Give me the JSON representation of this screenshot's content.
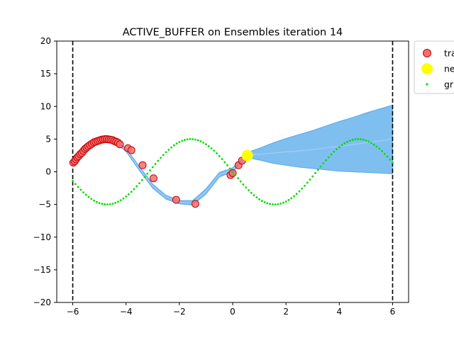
{
  "chart_data": {
    "type": "scatter",
    "title": "ACTIVE_BUFFER on Ensembles iteration 14",
    "xlabel": "",
    "ylabel": "",
    "xlim": [
      -6.6,
      6.6
    ],
    "ylim": [
      -20,
      20
    ],
    "xticks": [
      -6,
      -4,
      -2,
      0,
      2,
      4,
      6
    ],
    "xtick_labels": [
      "−6",
      "−4",
      "−2",
      "0",
      "2",
      "4",
      "6"
    ],
    "yticks": [
      -20,
      -15,
      -10,
      -5,
      0,
      5,
      10,
      15,
      20
    ],
    "ytick_labels": [
      "−20",
      "−15",
      "−10",
      "−5",
      "0",
      "5",
      "10",
      "15",
      "20"
    ],
    "vlines": [
      -6,
      6
    ],
    "legend_position": "upper-right-outside",
    "legend": [
      {
        "label": "tra",
        "marker": "circle",
        "color": "#f07070"
      },
      {
        "label": "ne",
        "marker": "circle",
        "color": "#ffff00"
      },
      {
        "label": "gr",
        "marker": "dot",
        "color": "#00dd00"
      }
    ],
    "colors": {
      "train": "#f07070",
      "train_edge": "#cc0000",
      "new": "#ffff00",
      "ground_truth": "#00dd00",
      "band": "#7fbfef",
      "band_edge": "#5aa8e6",
      "mean": "#9fcff5",
      "vline": "#000000"
    },
    "series": {
      "train_x": [
        -5.98,
        -5.93,
        -5.88,
        -5.83,
        -5.78,
        -5.72,
        -5.66,
        -5.6,
        -5.54,
        -5.48,
        -5.42,
        -5.35,
        -5.28,
        -5.21,
        -5.14,
        -5.07,
        -5.0,
        -4.93,
        -4.86,
        -4.79,
        -4.72,
        -4.65,
        -4.58,
        -4.51,
        -4.44,
        -4.37,
        -4.3,
        -4.23,
        -3.93,
        -3.8,
        -3.38,
        -2.97,
        -2.12,
        -1.4,
        -0.08,
        0.0,
        0.22,
        0.35
      ],
      "train_y": [
        1.4,
        1.6,
        1.9,
        2.2,
        2.4,
        2.7,
        2.9,
        3.2,
        3.5,
        3.7,
        3.9,
        4.1,
        4.3,
        4.5,
        4.6,
        4.7,
        4.8,
        4.9,
        4.95,
        5.0,
        5.0,
        4.95,
        4.9,
        4.85,
        4.7,
        4.6,
        4.45,
        4.2,
        3.6,
        3.3,
        1.0,
        -1.0,
        -4.3,
        -4.9,
        -0.5,
        -0.2,
        1.0,
        1.7
      ],
      "new_x": [
        0.55
      ],
      "new_y": [
        2.5
      ],
      "band_x": [
        -6.0,
        -5.5,
        -5.0,
        -4.5,
        -4.0,
        -3.5,
        -3.0,
        -2.5,
        -2.0,
        -1.5,
        -1.0,
        -0.5,
        0.0,
        0.25,
        0.5,
        1.0,
        1.5,
        2.0,
        2.5,
        3.0,
        3.5,
        4.0,
        4.5,
        5.0,
        5.5,
        6.0
      ],
      "band_upper": [
        1.8,
        3.8,
        5.1,
        5.2,
        3.6,
        0.8,
        -1.9,
        -3.6,
        -4.4,
        -4.4,
        -2.6,
        -0.1,
        0.6,
        1.6,
        2.9,
        3.6,
        4.4,
        5.1,
        5.7,
        6.3,
        7.0,
        7.7,
        8.3,
        9.0,
        9.6,
        10.2
      ],
      "band_lower": [
        1.2,
        3.2,
        4.6,
        4.7,
        3.1,
        0.2,
        -2.5,
        -4.2,
        -4.9,
        -5.1,
        -3.4,
        -0.8,
        0.0,
        1.0,
        2.2,
        1.8,
        1.3,
        1.0,
        0.7,
        0.5,
        0.3,
        0.1,
        0.0,
        -0.1,
        -0.2,
        -0.3
      ],
      "mean_y": [
        1.5,
        3.5,
        4.85,
        4.95,
        3.35,
        0.5,
        -2.2,
        -3.9,
        -4.65,
        -4.75,
        -3.0,
        -0.45,
        0.3,
        1.3,
        2.55,
        2.7,
        2.85,
        3.05,
        3.2,
        3.4,
        3.65,
        3.9,
        4.15,
        4.45,
        4.7,
        5.0
      ],
      "ground_truth_x_start": -6.0,
      "ground_truth_x_end": 6.0,
      "ground_truth_count": 121
    }
  }
}
